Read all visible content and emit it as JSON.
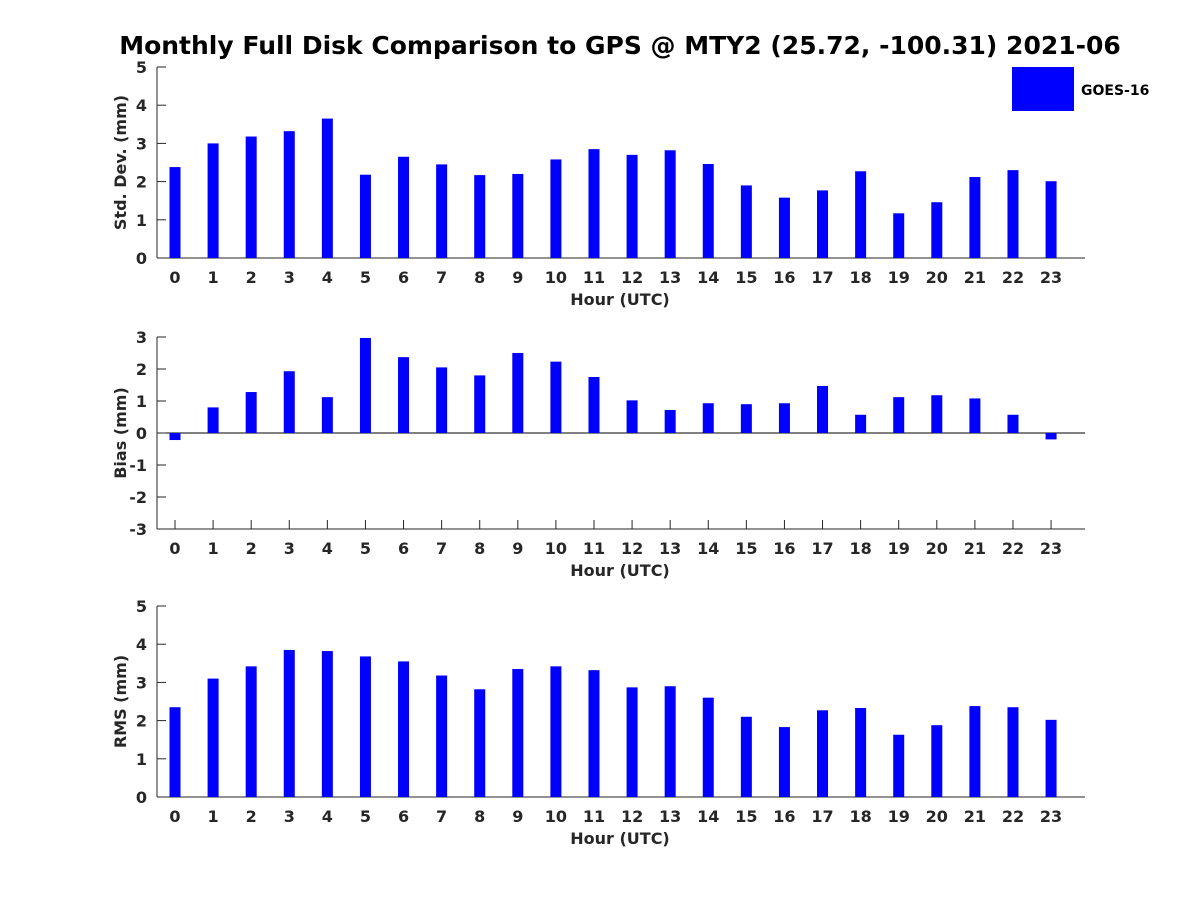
{
  "title": "Monthly Full Disk Comparison to GPS @ MTY2 (25.72, -100.31) 2021-06",
  "legend": {
    "label": "GOES-16",
    "color": "#0000ff",
    "placement": "top-right"
  },
  "chart_data": [
    {
      "type": "bar",
      "xlabel": "Hour (UTC)",
      "ylabel": "Std. Dev. (mm)",
      "ylim": [
        0,
        5
      ],
      "yticks": [
        "0",
        "1",
        "2",
        "3",
        "4",
        "5"
      ],
      "categories": [
        "0",
        "1",
        "2",
        "3",
        "4",
        "5",
        "6",
        "7",
        "8",
        "9",
        "10",
        "11",
        "12",
        "13",
        "14",
        "15",
        "16",
        "17",
        "18",
        "19",
        "20",
        "21",
        "22",
        "23"
      ],
      "series": [
        {
          "name": "GOES-16",
          "color": "#0000ff",
          "values": [
            2.38,
            3.0,
            3.18,
            3.32,
            3.65,
            2.18,
            2.65,
            2.45,
            2.17,
            2.2,
            2.58,
            2.85,
            2.7,
            2.82,
            2.46,
            1.9,
            1.58,
            1.77,
            2.27,
            1.17,
            1.46,
            2.12,
            2.3,
            2.01
          ]
        }
      ]
    },
    {
      "type": "bar",
      "xlabel": "Hour (UTC)",
      "ylabel": "Bias (mm)",
      "ylim": [
        -3,
        3
      ],
      "yticks": [
        "-3",
        "-2",
        "-1",
        "0",
        "1",
        "2",
        "3"
      ],
      "categories": [
        "0",
        "1",
        "2",
        "3",
        "4",
        "5",
        "6",
        "7",
        "8",
        "9",
        "10",
        "11",
        "12",
        "13",
        "14",
        "15",
        "16",
        "17",
        "18",
        "19",
        "20",
        "21",
        "22",
        "23"
      ],
      "series": [
        {
          "name": "GOES-16",
          "color": "#0000ff",
          "values": [
            -0.22,
            0.8,
            1.28,
            1.93,
            1.12,
            2.97,
            2.37,
            2.05,
            1.8,
            2.5,
            2.23,
            1.75,
            1.02,
            0.72,
            0.93,
            0.9,
            0.93,
            1.47,
            0.57,
            1.12,
            1.18,
            1.08,
            0.57,
            -0.2
          ]
        }
      ]
    },
    {
      "type": "bar",
      "xlabel": "Hour (UTC)",
      "ylabel": "RMS (mm)",
      "ylim": [
        0,
        5
      ],
      "yticks": [
        "0",
        "1",
        "2",
        "3",
        "4",
        "5"
      ],
      "categories": [
        "0",
        "1",
        "2",
        "3",
        "4",
        "5",
        "6",
        "7",
        "8",
        "9",
        "10",
        "11",
        "12",
        "13",
        "14",
        "15",
        "16",
        "17",
        "18",
        "19",
        "20",
        "21",
        "22",
        "23"
      ],
      "series": [
        {
          "name": "GOES-16",
          "color": "#0000ff",
          "values": [
            2.35,
            3.1,
            3.42,
            3.85,
            3.82,
            3.68,
            3.55,
            3.18,
            2.82,
            3.35,
            3.42,
            3.32,
            2.87,
            2.9,
            2.6,
            2.1,
            1.83,
            2.27,
            2.33,
            1.63,
            1.88,
            2.38,
            2.35,
            2.02
          ]
        }
      ]
    }
  ]
}
